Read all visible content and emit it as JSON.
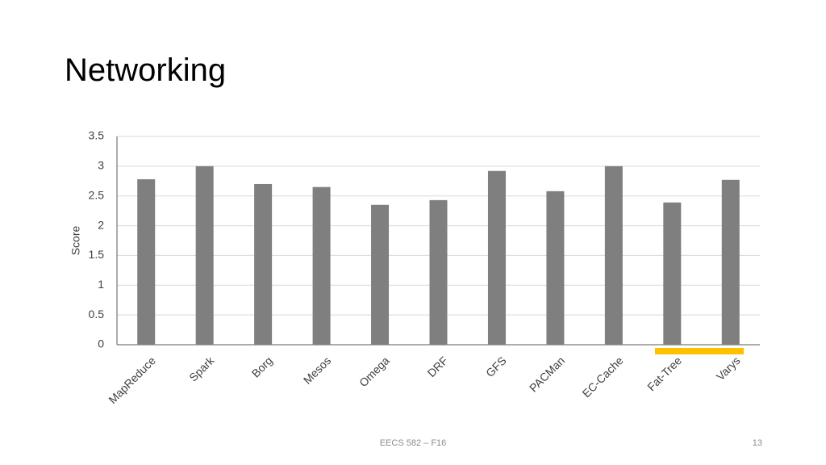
{
  "title": "Networking",
  "footer": "EECS 582 – F16",
  "page_number": "13",
  "chart_data": {
    "type": "bar",
    "y_label": "Score",
    "categories": [
      "MapReduce",
      "Spark",
      "Borg",
      "Mesos",
      "Omega",
      "DRF",
      "GFS",
      "PACMan",
      "EC-Cache",
      "Fat-Tree",
      "Varys"
    ],
    "values": [
      2.78,
      3.0,
      2.7,
      2.65,
      2.35,
      2.43,
      2.92,
      2.58,
      3.0,
      2.39,
      2.77
    ],
    "color": "#7f7f7f",
    "ylim": [
      0,
      3.5
    ],
    "yticks": [
      0,
      0.5,
      1,
      1.5,
      2,
      2.5,
      3,
      3.5
    ],
    "grid": true
  }
}
